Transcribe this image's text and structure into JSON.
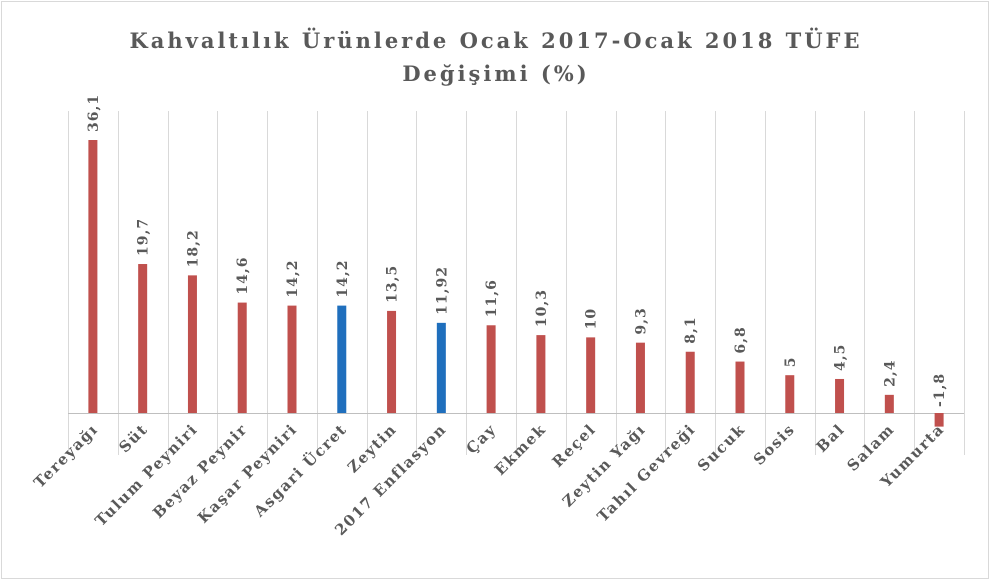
{
  "chart_data": {
    "type": "bar",
    "title": "Kahvaltılık Ürünlerde Ocak 2017-Ocak 2018 TÜFE",
    "subtitle": "Değişimi (%)",
    "categories": [
      "Tereyağı",
      "Süt",
      "Tulum Peyniri",
      "Beyaz Peynir",
      "Kaşar Peyniri",
      "Asgari Ücret",
      "Zeytin",
      "2017 Enflasyon",
      "Çay",
      "Ekmek",
      "Reçel",
      "Zeytin Yağı",
      "Tahıl Gevreği",
      "Sucuk",
      "Sosis",
      "Bal",
      "Salam",
      "Yumurta"
    ],
    "values": [
      36.1,
      19.7,
      18.2,
      14.6,
      14.2,
      14.2,
      13.5,
      11.92,
      11.6,
      10.3,
      10,
      9.3,
      8.1,
      6.8,
      5,
      4.5,
      2.4,
      -1.8
    ],
    "value_labels": [
      "36,1",
      "19,7",
      "18,2",
      "14,6",
      "14,2",
      "14,2",
      "13,5",
      "11,92",
      "11,6",
      "10,3",
      "10",
      "9,3",
      "8,1",
      "6,8",
      "5",
      "4,5",
      "2,4",
      "-1,8"
    ],
    "highlight_categories": [
      "Asgari Ücret",
      "2017 Enflasyon"
    ],
    "xlabel": "",
    "ylabel": "",
    "ylim": [
      -2,
      38
    ],
    "grid": "vertical",
    "legend": "none"
  },
  "colors": {
    "bar": "#c0504d",
    "highlight": "#1f6fbd",
    "text": "#595959",
    "grid": "#d9d9d9"
  }
}
